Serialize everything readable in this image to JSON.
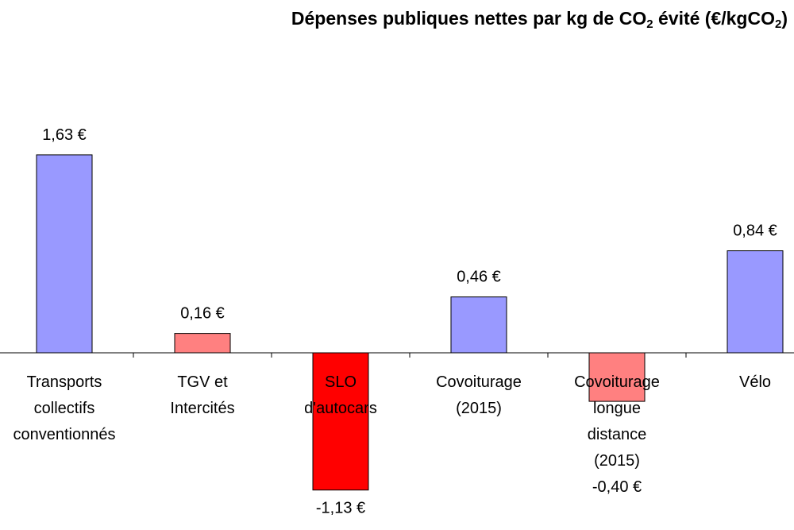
{
  "chart_data": {
    "type": "bar",
    "title": {
      "part1": "Dépenses publiques nettes par kg de CO",
      "sub1": "2",
      "part2": " évité (€/kgCO",
      "sub2": "2",
      "part3": ")"
    },
    "categories": [
      [
        "Transports",
        "collectifs",
        "conventionnés"
      ],
      [
        "TGV et",
        "Intercités"
      ],
      [
        "SLO",
        "d'autocars"
      ],
      [
        "Covoiturage",
        "(2015)"
      ],
      [
        "Covoiturage",
        "longue",
        "distance",
        "(2015)"
      ],
      [
        "Vélo"
      ]
    ],
    "values": [
      1.63,
      0.16,
      -1.13,
      0.46,
      -0.4,
      0.84
    ],
    "value_labels": [
      "1,63 €",
      "0,16 €",
      "-1,13 €",
      "0,46 €",
      "-0,40 €",
      "0,84 €"
    ],
    "colors": [
      "#9999ff",
      "#ff8080",
      "#ff0000",
      "#9999ff",
      "#ff8080",
      "#9999ff"
    ],
    "bar_stroke": "#000000",
    "xlabel": "",
    "ylabel": "",
    "grid": false,
    "legend": "none"
  }
}
